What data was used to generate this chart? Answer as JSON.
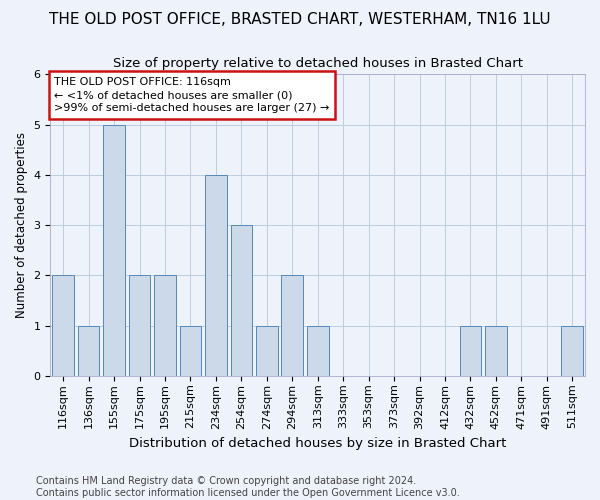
{
  "title": "THE OLD POST OFFICE, BRASTED CHART, WESTERHAM, TN16 1LU",
  "subtitle": "Size of property relative to detached houses in Brasted Chart",
  "xlabel": "Distribution of detached houses by size in Brasted Chart",
  "ylabel": "Number of detached properties",
  "categories": [
    "116sqm",
    "136sqm",
    "155sqm",
    "175sqm",
    "195sqm",
    "215sqm",
    "234sqm",
    "254sqm",
    "274sqm",
    "294sqm",
    "313sqm",
    "333sqm",
    "353sqm",
    "373sqm",
    "392sqm",
    "412sqm",
    "432sqm",
    "452sqm",
    "471sqm",
    "491sqm",
    "511sqm"
  ],
  "values": [
    2,
    1,
    5,
    2,
    2,
    1,
    4,
    3,
    1,
    2,
    1,
    0,
    0,
    0,
    0,
    0,
    1,
    1,
    0,
    0,
    1
  ],
  "bar_color": "#ccd9e8",
  "bar_edge_color": "#5588bb",
  "annotation_text": "THE OLD POST OFFICE: 116sqm\n← <1% of detached houses are smaller (0)\n>99% of semi-detached houses are larger (27) →",
  "annotation_box_facecolor": "#ffffff",
  "annotation_box_edgecolor": "#cc1111",
  "ylim": [
    0,
    6
  ],
  "yticks": [
    0,
    1,
    2,
    3,
    4,
    5,
    6
  ],
  "grid_color": "#bbccdd",
  "background_color": "#eef2fa",
  "footer_line1": "Contains HM Land Registry data © Crown copyright and database right 2024.",
  "footer_line2": "Contains public sector information licensed under the Open Government Licence v3.0.",
  "title_fontsize": 11,
  "subtitle_fontsize": 9.5,
  "xlabel_fontsize": 9.5,
  "ylabel_fontsize": 8.5,
  "tick_fontsize": 8,
  "annotation_fontsize": 8,
  "footer_fontsize": 7
}
